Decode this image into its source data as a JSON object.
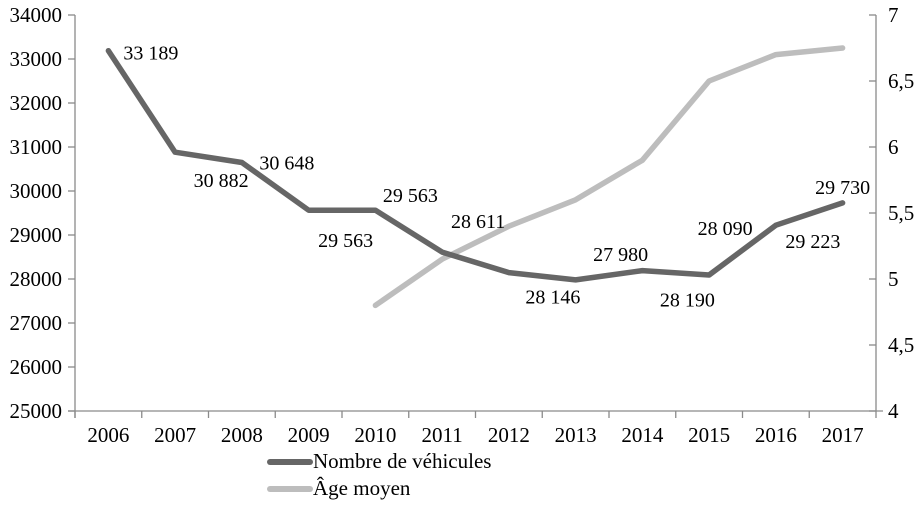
{
  "chart_data": {
    "type": "line",
    "title": "",
    "categories": [
      "2006",
      "2007",
      "2008",
      "2009",
      "2010",
      "2011",
      "2012",
      "2013",
      "2014",
      "2015",
      "2016",
      "2017"
    ],
    "series": [
      {
        "name": "Nombre de véhicules",
        "axis": "left",
        "color": "#666666",
        "values": [
          33189,
          30882,
          30648,
          29563,
          29563,
          28611,
          28146,
          27980,
          28190,
          28090,
          29223,
          29730
        ],
        "point_labels": [
          "33 189",
          "30 882",
          "30 648",
          "29 563",
          "29 563",
          "28 611",
          "28 146",
          "27 980",
          "28 190",
          "28 090",
          "29 223",
          "29 730"
        ],
        "label_placement": [
          {
            "dx": 15,
            "dy": 9,
            "anchor": "start"
          },
          {
            "dx": 46,
            "dy": 35,
            "anchor": "middle"
          },
          {
            "dx": 45,
            "dy": 7,
            "anchor": "middle"
          },
          {
            "dx": 37,
            "dy": 37,
            "anchor": "middle"
          },
          {
            "dx": 35,
            "dy": -8,
            "anchor": "middle"
          },
          {
            "dx": 36,
            "dy": -24,
            "anchor": "middle"
          },
          {
            "dx": 44,
            "dy": 31,
            "anchor": "middle"
          },
          {
            "dx": 45,
            "dy": -19,
            "anchor": "middle"
          },
          {
            "dx": 45,
            "dy": 36,
            "anchor": "middle"
          },
          {
            "dx": 16,
            "dy": -40,
            "anchor": "middle"
          },
          {
            "dx": 37,
            "dy": 23,
            "anchor": "middle"
          },
          {
            "dx": 0,
            "dy": -9,
            "anchor": "middle"
          }
        ]
      },
      {
        "name": "Âge moyen",
        "axis": "right",
        "color": "#bdbdbd",
        "values": [
          null,
          null,
          null,
          null,
          4.8,
          5.15,
          5.4,
          5.6,
          5.9,
          6.5,
          6.7,
          6.75
        ],
        "point_labels": [],
        "label_placement": []
      }
    ],
    "left_axis": {
      "min": 25000,
      "max": 34000,
      "step": 1000,
      "tick_labels": [
        "25000",
        "26000",
        "27000",
        "28000",
        "29000",
        "30000",
        "31000",
        "32000",
        "33000",
        "34000"
      ]
    },
    "right_axis": {
      "min": 4,
      "max": 7,
      "step": 0.5,
      "tick_labels": [
        "4",
        "4,5",
        "5",
        "5,5",
        "6",
        "6,5",
        "7"
      ]
    },
    "legend": {
      "position": "bottom-center",
      "entries": [
        {
          "label": "Nombre de véhicules",
          "color": "#666666"
        },
        {
          "label": "Âge moyen",
          "color": "#bdbdbd"
        }
      ]
    },
    "grid": false,
    "axis_color": "#8a8a8a",
    "text_color": "#000000",
    "xlabel": "",
    "ylabel_left": "",
    "ylabel_right": ""
  }
}
